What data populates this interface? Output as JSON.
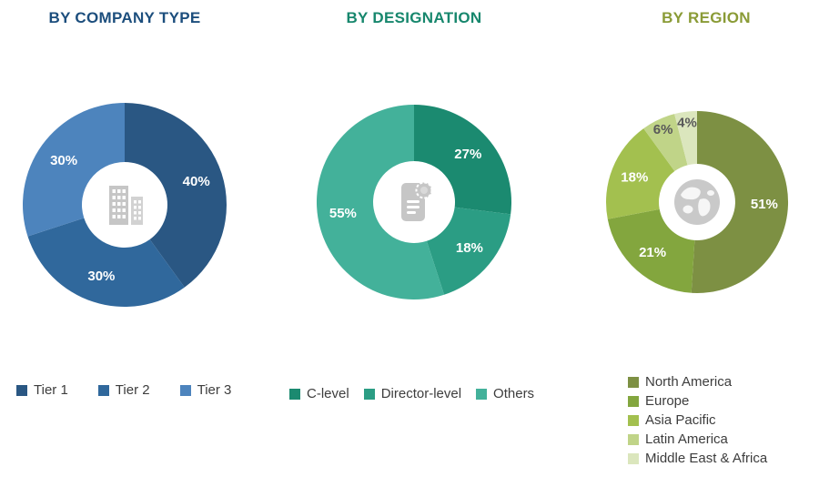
{
  "page": {
    "background": "#ffffff"
  },
  "chart_data": [
    {
      "type": "pie",
      "donut": true,
      "title": "BY COMPANY TYPE",
      "title_color": "#1c4e7d",
      "center_icon": "building-icon",
      "categories": [
        "Tier 1",
        "Tier 2",
        "Tier 3"
      ],
      "values": [
        40,
        30,
        30
      ],
      "labels": [
        "40%",
        "30%",
        "30%"
      ],
      "colors": [
        "#2a5783",
        "#30689c",
        "#4d84bd"
      ],
      "label_colors": [
        "#ffffff",
        "#ffffff",
        "#ffffff"
      ],
      "start_angle": 0,
      "direction": "clockwise",
      "legend_position": "bottom-horizontal"
    },
    {
      "type": "pie",
      "donut": true,
      "title": "BY DESIGNATION",
      "title_color": "#17876d",
      "center_icon": "certificate-icon",
      "categories": [
        "C-level",
        "Director-level",
        "Others"
      ],
      "values": [
        27,
        18,
        55
      ],
      "labels": [
        "27%",
        "18%",
        "55%"
      ],
      "colors": [
        "#1b8a70",
        "#2b9d84",
        "#43b19a"
      ],
      "label_colors": [
        "#ffffff",
        "#ffffff",
        "#ffffff"
      ],
      "start_angle": 0,
      "direction": "clockwise",
      "legend_position": "bottom-horizontal"
    },
    {
      "type": "pie",
      "donut": true,
      "title": "BY REGION",
      "title_color": "#8a9b36",
      "center_icon": "globe-icon",
      "categories": [
        "North America",
        "Europe",
        "Asia Pacific",
        "Latin America",
        "Middle East & Africa"
      ],
      "values": [
        51,
        21,
        18,
        6,
        4
      ],
      "labels": [
        "51%",
        "21%",
        "18%",
        "6%",
        "4%"
      ],
      "colors": [
        "#7d9043",
        "#83a63e",
        "#a3c04f",
        "#c0d488",
        "#dbe6bd"
      ],
      "label_colors": [
        "#ffffff",
        "#ffffff",
        "#ffffff",
        "#595959",
        "#595959"
      ],
      "start_angle": 0,
      "direction": "clockwise",
      "legend_position": "bottom-vertical"
    }
  ]
}
